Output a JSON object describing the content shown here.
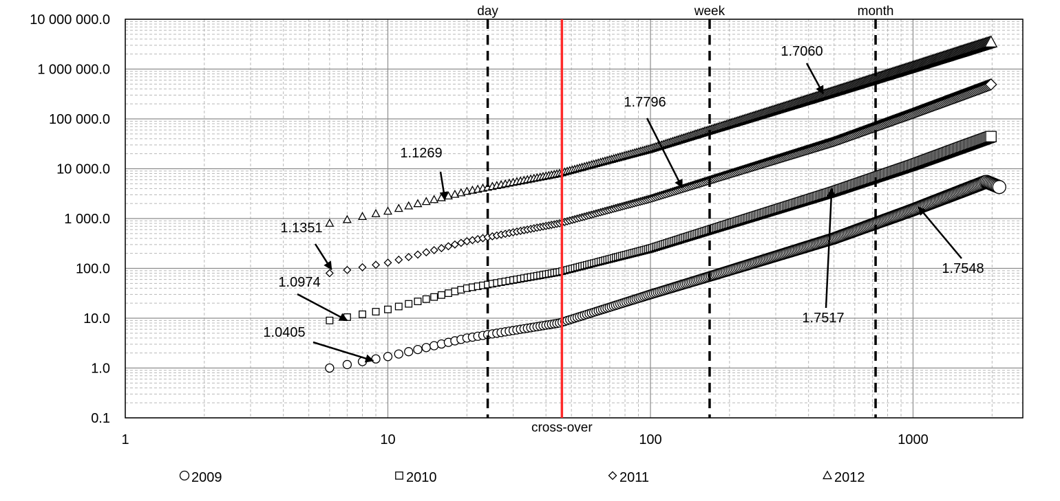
{
  "chart_data": {
    "type": "scatter",
    "x_scale": "log",
    "y_scale": "log",
    "xlim": [
      1,
      2200
    ],
    "ylim": [
      0.1,
      10000000
    ],
    "grid": true,
    "legend_position": "bottom",
    "x_ticks": [
      {
        "value": 1,
        "label": "1"
      },
      {
        "value": 10,
        "label": "10"
      },
      {
        "value": 100,
        "label": "100"
      },
      {
        "value": 1000,
        "label": "1000"
      }
    ],
    "y_ticks": [
      {
        "value": 0.1,
        "label": "0.1"
      },
      {
        "value": 1,
        "label": "1.0"
      },
      {
        "value": 10,
        "label": "10.0"
      },
      {
        "value": 100,
        "label": "100.0"
      },
      {
        "value": 1000,
        "label": "1 000.0"
      },
      {
        "value": 10000,
        "label": "10 000.0"
      },
      {
        "value": 100000,
        "label": "100 000.0"
      },
      {
        "value": 1000000,
        "label": "1 000 000.0"
      },
      {
        "value": 10000000,
        "label": "10 000 000.0"
      }
    ],
    "series": [
      {
        "name": "2009",
        "marker": "circle",
        "x_start": 6,
        "x_end": 2150,
        "y_points": [
          [
            6,
            1.0
          ],
          [
            10,
            1.7
          ],
          [
            20,
            4.0
          ],
          [
            45,
            8.0
          ],
          [
            100,
            30
          ],
          [
            170,
            70
          ],
          [
            500,
            400
          ],
          [
            1000,
            1500
          ],
          [
            1900,
            5500
          ],
          [
            2150,
            4200
          ]
        ]
      },
      {
        "name": "2010",
        "marker": "square",
        "x_start": 6,
        "x_end": 2000,
        "y_points": [
          [
            6,
            9
          ],
          [
            10,
            15
          ],
          [
            20,
            40
          ],
          [
            45,
            85
          ],
          [
            100,
            250
          ],
          [
            170,
            600
          ],
          [
            500,
            3500
          ],
          [
            1000,
            12000
          ],
          [
            2000,
            45000
          ]
        ]
      },
      {
        "name": "2011",
        "marker": "diamond",
        "x_start": 6,
        "x_end": 2000,
        "y_points": [
          [
            6,
            80
          ],
          [
            10,
            130
          ],
          [
            20,
            350
          ],
          [
            45,
            800
          ],
          [
            100,
            2500
          ],
          [
            170,
            6000
          ],
          [
            500,
            35000
          ],
          [
            1000,
            130000
          ],
          [
            2000,
            500000
          ]
        ]
      },
      {
        "name": "2012",
        "marker": "triangle",
        "x_start": 6,
        "x_end": 2000,
        "y_points": [
          [
            6,
            800
          ],
          [
            10,
            1400
          ],
          [
            20,
            3500
          ],
          [
            45,
            8000
          ],
          [
            100,
            25000
          ],
          [
            170,
            60000
          ],
          [
            500,
            350000
          ],
          [
            1000,
            1100000
          ],
          [
            2000,
            3500000
          ]
        ]
      }
    ],
    "vertical_lines": [
      {
        "x": 24,
        "label": "day",
        "style": "dashed",
        "color": "#000000"
      },
      {
        "x": 46,
        "label": "cross-over",
        "style": "solid",
        "color": "#ff2a2a"
      },
      {
        "x": 168,
        "label": "week",
        "style": "dashed",
        "color": "#000000"
      },
      {
        "x": 720,
        "label": "month",
        "style": "dashed",
        "color": "#000000"
      }
    ],
    "annotations": [
      {
        "text": "1.0405",
        "arrow_to": [
          8.8,
          1.4
        ]
      },
      {
        "text": "1.0974",
        "arrow_to": [
          7.0,
          9.0
        ]
      },
      {
        "text": "1.1351",
        "arrow_to": [
          6.1,
          95
        ]
      },
      {
        "text": "1.1269",
        "arrow_to": [
          16.5,
          2400
        ]
      },
      {
        "text": "1.7796",
        "arrow_to": [
          132,
          4200
        ]
      },
      {
        "text": "1.7060",
        "arrow_to": [
          455,
          320000
        ]
      },
      {
        "text": "1.7517",
        "arrow_to": [
          490,
          4000
        ]
      },
      {
        "text": "1.7548",
        "arrow_to": [
          1050,
          1700
        ]
      }
    ]
  }
}
